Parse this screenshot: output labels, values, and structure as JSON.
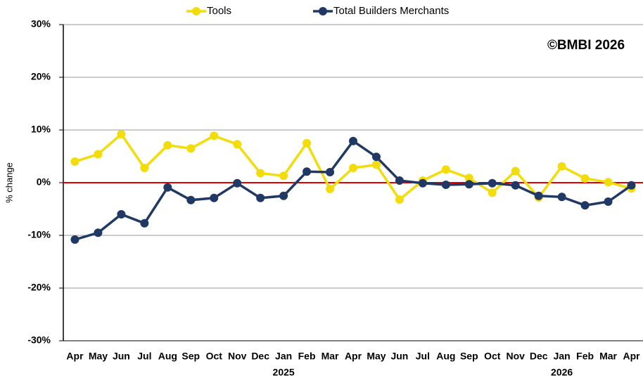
{
  "chart_data": {
    "type": "line",
    "y_label": "% change",
    "annotation": "©BMBI 2026",
    "categories": [
      "Apr",
      "May",
      "Jun",
      "Jul",
      "Aug",
      "Sep",
      "Oct",
      "Nov",
      "Dec",
      "Jan",
      "Feb",
      "Mar",
      "Apr",
      "May",
      "Jun",
      "Jul",
      "Aug",
      "Sep",
      "Oct",
      "Nov",
      "Dec",
      "Jan",
      "Feb",
      "Mar",
      "Apr"
    ],
    "year_labels": [
      null,
      null,
      null,
      null,
      null,
      null,
      null,
      null,
      null,
      "2025",
      null,
      null,
      null,
      null,
      null,
      null,
      null,
      null,
      null,
      null,
      null,
      "2026",
      null,
      null,
      null
    ],
    "series": [
      {
        "name": "Tools",
        "color": "#f2dc0c",
        "values": [
          4.0,
          5.4,
          9.2,
          2.8,
          7.1,
          6.5,
          8.9,
          7.3,
          1.8,
          1.3,
          7.5,
          -1.2,
          2.8,
          3.4,
          -3.2,
          0.4,
          2.5,
          0.9,
          -1.9,
          2.2,
          -2.8,
          3.1,
          0.8,
          0.1,
          -1.1
        ]
      },
      {
        "name": "Total Builders Merchants",
        "color": "#1f3864",
        "values": [
          -10.8,
          -9.5,
          -6.0,
          -7.7,
          -0.9,
          -3.3,
          -2.9,
          -0.1,
          -2.9,
          -2.5,
          2.1,
          2.0,
          7.9,
          4.9,
          0.4,
          -0.1,
          -0.4,
          -0.3,
          -0.1,
          -0.5,
          -2.5,
          -2.7,
          -4.3,
          -3.6,
          -0.5
        ]
      }
    ],
    "ylim": [
      -30,
      30
    ],
    "yticks": [
      {
        "value": -30,
        "label": "-30%"
      },
      {
        "value": -20,
        "label": "-20%"
      },
      {
        "value": -10,
        "label": "-10%"
      },
      {
        "value": 0,
        "label": "0%"
      },
      {
        "value": 10,
        "label": "10%"
      },
      {
        "value": 20,
        "label": "20%"
      },
      {
        "value": 30,
        "label": "30%"
      }
    ],
    "grid": true,
    "zero_line_color": "#e00000"
  }
}
